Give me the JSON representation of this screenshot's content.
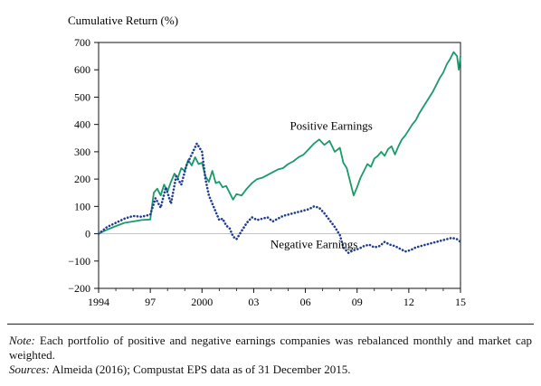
{
  "chart_data": {
    "type": "line",
    "ylabel": "Cumulative Return (%)",
    "xlabel": "",
    "ylim": [
      -200,
      700
    ],
    "yticks": [
      700,
      600,
      500,
      400,
      300,
      200,
      100,
      0,
      -100,
      -200
    ],
    "ytick_labels": [
      "700",
      "600",
      "500",
      "400",
      "300",
      "200",
      "100",
      "0",
      "−100",
      "−200"
    ],
    "xlim": [
      1994,
      2015
    ],
    "xticks": [
      1994,
      1997,
      2000,
      2003,
      2006,
      2009,
      2012,
      2015
    ],
    "xtick_labels": [
      "1994",
      "97",
      "2000",
      "03",
      "06",
      "09",
      "12",
      "15"
    ],
    "grid": false,
    "zero_line": true,
    "series": [
      {
        "name": "Positive Earnings",
        "style": "solid",
        "color": "#1a9a6a",
        "x": [
          1994,
          1994.5,
          1995,
          1995.5,
          1996,
          1996.5,
          1997,
          1997.2,
          1997.4,
          1997.6,
          1997.8,
          1998,
          1998.2,
          1998.4,
          1998.6,
          1998.8,
          1999,
          1999.2,
          1999.4,
          1999.6,
          1999.8,
          2000,
          2000.2,
          2000.4,
          2000.6,
          2000.8,
          2001,
          2001.2,
          2001.4,
          2001.6,
          2001.8,
          2002,
          2002.3,
          2002.6,
          2002.9,
          2003.2,
          2003.5,
          2003.8,
          2004.1,
          2004.4,
          2004.7,
          2005,
          2005.3,
          2005.6,
          2005.9,
          2006.2,
          2006.5,
          2006.8,
          2007.1,
          2007.4,
          2007.7,
          2008,
          2008.2,
          2008.4,
          2008.6,
          2008.8,
          2009,
          2009.2,
          2009.4,
          2009.6,
          2009.8,
          2010,
          2010.2,
          2010.4,
          2010.6,
          2010.8,
          2011,
          2011.2,
          2011.4,
          2011.6,
          2011.8,
          2012,
          2012.2,
          2012.4,
          2012.6,
          2012.8,
          2013,
          2013.2,
          2013.4,
          2013.6,
          2013.8,
          2014,
          2014.2,
          2014.4,
          2014.6,
          2014.8,
          2014.9,
          2015
        ],
        "y": [
          0,
          15,
          28,
          40,
          45,
          50,
          52,
          150,
          165,
          140,
          180,
          155,
          190,
          220,
          205,
          240,
          230,
          270,
          250,
          280,
          255,
          260,
          210,
          190,
          230,
          185,
          190,
          170,
          175,
          150,
          125,
          145,
          140,
          165,
          185,
          200,
          205,
          215,
          225,
          235,
          240,
          255,
          265,
          280,
          290,
          310,
          330,
          345,
          325,
          340,
          300,
          315,
          260,
          240,
          190,
          140,
          170,
          205,
          230,
          255,
          245,
          275,
          285,
          300,
          285,
          310,
          320,
          290,
          320,
          345,
          360,
          380,
          400,
          415,
          440,
          460,
          480,
          500,
          520,
          545,
          570,
          590,
          620,
          640,
          665,
          650,
          600,
          650
        ]
      },
      {
        "name": "Negative Earnings",
        "style": "dotted",
        "color": "#1f3d8f",
        "x": [
          1994,
          1994.5,
          1995,
          1995.5,
          1996,
          1996.5,
          1997,
          1997.3,
          1997.6,
          1997.9,
          1998.2,
          1998.5,
          1998.8,
          1999.1,
          1999.4,
          1999.7,
          2000,
          2000.2,
          2000.4,
          2000.6,
          2000.8,
          2001,
          2001.2,
          2001.4,
          2001.6,
          2001.8,
          2002,
          2002.3,
          2002.6,
          2002.9,
          2003.2,
          2003.5,
          2003.8,
          2004.1,
          2004.4,
          2004.7,
          2005,
          2005.3,
          2005.6,
          2005.9,
          2006.2,
          2006.5,
          2006.8,
          2007.1,
          2007.4,
          2007.7,
          2008,
          2008.2,
          2008.5,
          2008.8,
          2009.1,
          2009.4,
          2009.7,
          2010,
          2010.3,
          2010.6,
          2010.9,
          2011.2,
          2011.5,
          2011.8,
          2012.1,
          2012.4,
          2012.7,
          2013,
          2013.3,
          2013.6,
          2013.9,
          2014.2,
          2014.5,
          2014.8,
          2015
        ],
        "y": [
          0,
          25,
          40,
          55,
          65,
          62,
          70,
          130,
          95,
          170,
          110,
          210,
          180,
          250,
          290,
          330,
          300,
          200,
          140,
          110,
          80,
          50,
          55,
          30,
          20,
          -10,
          -20,
          10,
          40,
          60,
          50,
          55,
          60,
          45,
          55,
          65,
          70,
          75,
          80,
          85,
          90,
          100,
          95,
          75,
          50,
          25,
          -5,
          -50,
          -70,
          -60,
          -55,
          -45,
          -40,
          -50,
          -45,
          -30,
          -40,
          -45,
          -55,
          -65,
          -60,
          -50,
          -45,
          -40,
          -35,
          -30,
          -25,
          -20,
          -15,
          -20,
          -30
        ]
      }
    ],
    "annotations": [
      {
        "text": "Positive Earnings",
        "x": 2007.5,
        "y": 380,
        "anchor": "middle"
      },
      {
        "text": "Negative Earnings",
        "x": 2006.5,
        "y": -52,
        "anchor": "middle"
      }
    ]
  },
  "note": {
    "label": "Note:",
    "text": " Each portfolio of positive and negative earnings companies was rebalanced monthly and market cap weighted."
  },
  "sources": {
    "label": "Sources:",
    "text": " Almeida (2016); Compustat EPS data as of 31 December 2015."
  }
}
